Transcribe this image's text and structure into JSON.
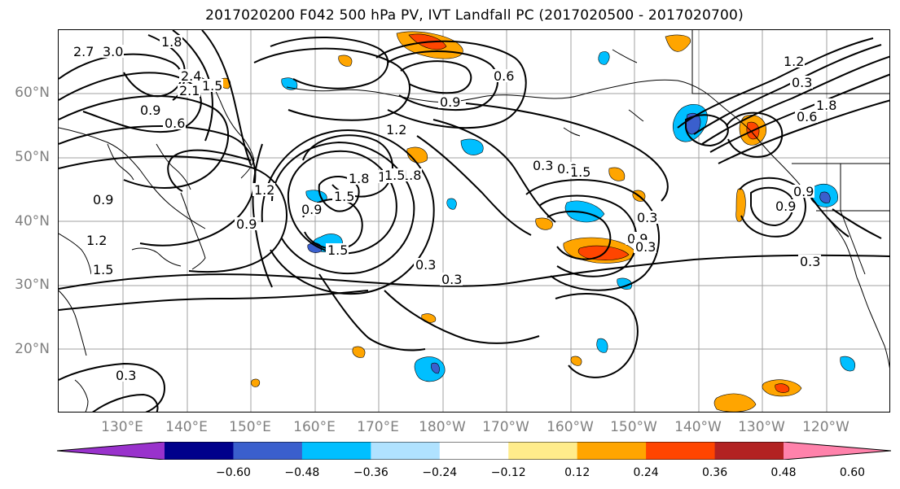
{
  "title": "2017020200 F042 500 hPa PV, IVT Landfall PC (2017020500 - 2017020700)",
  "map": {
    "lat_labels": [
      "60°N",
      "50°N",
      "40°N",
      "30°N",
      "20°N"
    ],
    "lon_labels": [
      "130°E",
      "140°E",
      "150°E",
      "160°E",
      "170°E",
      "180°W",
      "170°W",
      "160°W",
      "150°W",
      "140°W",
      "130°W",
      "120°W"
    ],
    "contour_labels": [
      "2.7",
      "3.0",
      "1.8",
      "2.4",
      "2.1",
      "1.5",
      "0.9",
      "0.6",
      "0.9",
      "1.2",
      "1.5",
      "0.9",
      "1.2",
      "1.5",
      "1.8",
      "1.5",
      "1.5",
      "0.9",
      "1.8",
      "1.5",
      "0.9",
      "0.6",
      "0.3",
      "0.9",
      "1.5",
      "1.2",
      "0.3",
      "0.3",
      "0.9",
      "0.3",
      "0.3",
      "0.3",
      "0.6",
      "1.8",
      "1.2",
      "0.9",
      "0.9",
      "0.3",
      "0.3"
    ],
    "colors": {
      "grid": "#a0a0a0",
      "contour": "#000000",
      "coast": "#000000"
    }
  },
  "colorbar": {
    "tick_labels": [
      "−0.60",
      "−0.48",
      "−0.36",
      "−0.24",
      "−0.12",
      "0.12",
      "0.24",
      "0.36",
      "0.48",
      "0.60"
    ],
    "colors": [
      "#9932cc",
      "#00008b",
      "#3a5fcd",
      "#00bfff",
      "#b0e2ff",
      "#ffffff",
      "#ffec8b",
      "#ffa500",
      "#ff4500",
      "#b22222",
      "#ff82ab"
    ]
  }
}
